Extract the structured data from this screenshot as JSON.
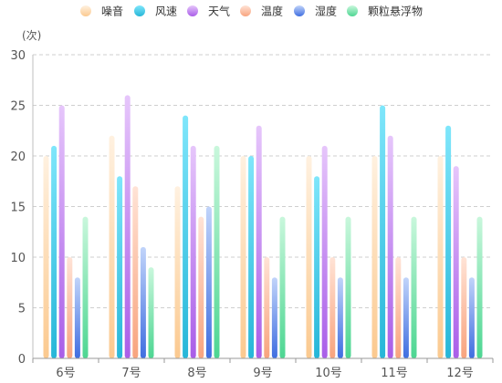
{
  "chart_data": {
    "type": "bar",
    "unit_label": "(次)",
    "categories": [
      "6号",
      "7号",
      "8号",
      "9号",
      "10号",
      "11号",
      "12号"
    ],
    "ylim": [
      0,
      30
    ],
    "yticks": [
      0,
      5,
      10,
      15,
      20,
      25,
      30
    ],
    "grid": true,
    "legend_position": "top-center",
    "series": [
      {
        "name": "噪音",
        "color_top": "#fff1e0",
        "color_bottom": "#fbc98f",
        "values": [
          20,
          22,
          17,
          20,
          20,
          20,
          20
        ]
      },
      {
        "name": "风速",
        "color_top": "#7fe6fb",
        "color_bottom": "#26b6d8",
        "values": [
          21,
          18,
          24,
          20,
          18,
          25,
          23
        ]
      },
      {
        "name": "天气",
        "color_top": "#e6c6fb",
        "color_bottom": "#a95de8",
        "values": [
          25,
          26,
          21,
          23,
          21,
          22,
          19
        ]
      },
      {
        "name": "温度",
        "color_top": "#ffe3d6",
        "color_bottom": "#f8a47e",
        "values": [
          10,
          17,
          14,
          10,
          10,
          10,
          10
        ]
      },
      {
        "name": "湿度",
        "color_top": "#c1d4fa",
        "color_bottom": "#3f6ee0",
        "values": [
          8,
          11,
          15,
          8,
          8,
          8,
          8
        ]
      },
      {
        "name": "颗粒悬浮物",
        "color_top": "#c9f7dc",
        "color_bottom": "#4dd692",
        "values": [
          14,
          9,
          21,
          14,
          14,
          14,
          14
        ]
      }
    ]
  }
}
